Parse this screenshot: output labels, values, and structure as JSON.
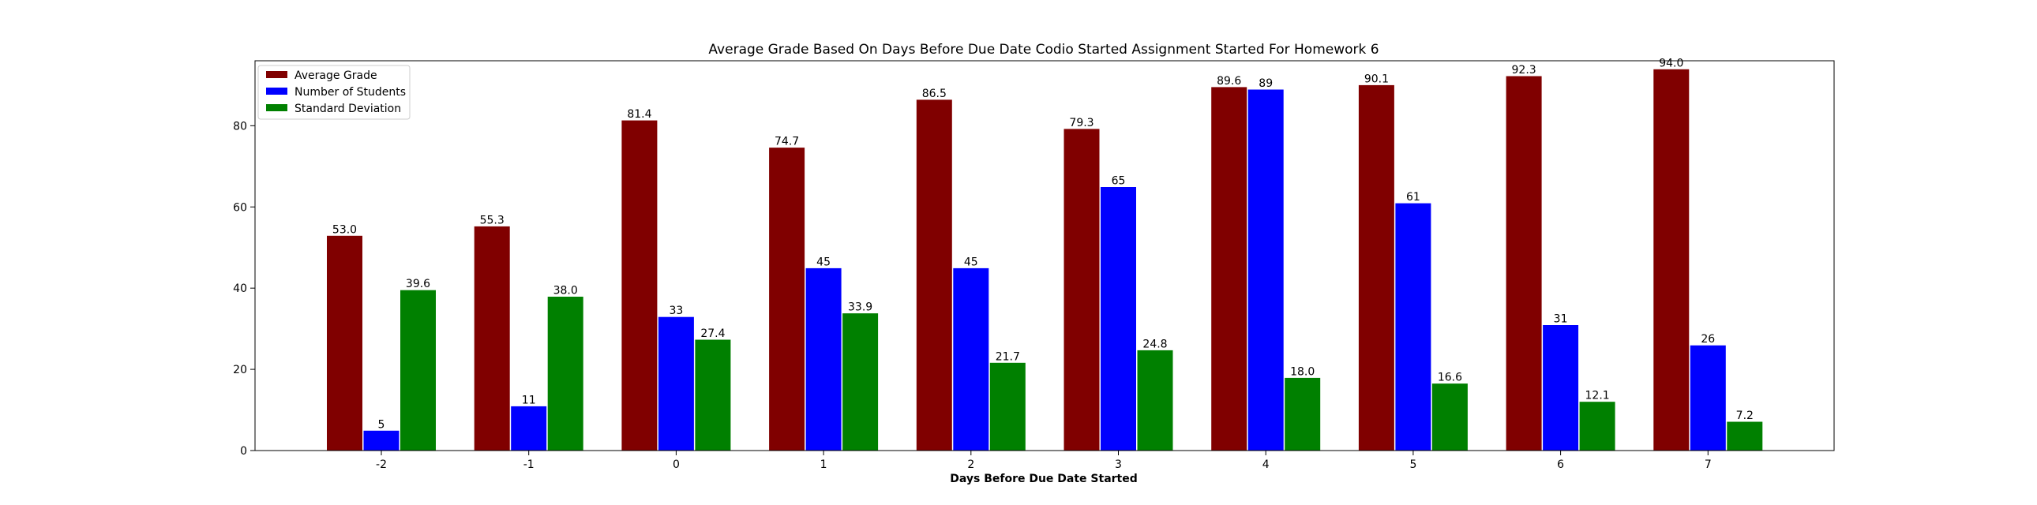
{
  "chart_data": {
    "type": "bar",
    "title": "Average Grade Based On Days Before Due Date Codio Started Assignment Started For Homework 6",
    "xlabel": "Days Before Due Date Started",
    "ylabel": "",
    "categories": [
      "-2",
      "-1",
      "0",
      "1",
      "2",
      "3",
      "4",
      "5",
      "6",
      "7"
    ],
    "ylim": [
      0,
      96
    ],
    "yticks": [
      0,
      20,
      40,
      60,
      80
    ],
    "legend_position": "top-left",
    "grid": false,
    "series": [
      {
        "name": "Average Grade",
        "color": "#800000",
        "values": [
          53.0,
          55.3,
          81.4,
          74.7,
          86.5,
          79.3,
          89.6,
          90.1,
          92.3,
          94.0
        ],
        "labels": [
          "53.0",
          "55.3",
          "81.4",
          "74.7",
          "86.5",
          "79.3",
          "89.6",
          "90.1",
          "92.3",
          "94.0"
        ]
      },
      {
        "name": "Number of Students",
        "color": "#0000ff",
        "values": [
          5,
          11,
          33,
          45,
          45,
          65,
          89,
          61,
          31,
          26
        ],
        "labels": [
          "5",
          "11",
          "33",
          "45",
          "45",
          "65",
          "89",
          "61",
          "31",
          "26"
        ]
      },
      {
        "name": "Standard Deviation",
        "color": "#008000",
        "values": [
          39.6,
          38.0,
          27.4,
          33.9,
          21.7,
          24.8,
          18.0,
          16.6,
          12.1,
          7.2
        ],
        "labels": [
          "39.6",
          "38.0",
          "27.4",
          "33.9",
          "21.7",
          "24.8",
          "18.0",
          "16.6",
          "12.1",
          "7.2"
        ]
      }
    ]
  }
}
